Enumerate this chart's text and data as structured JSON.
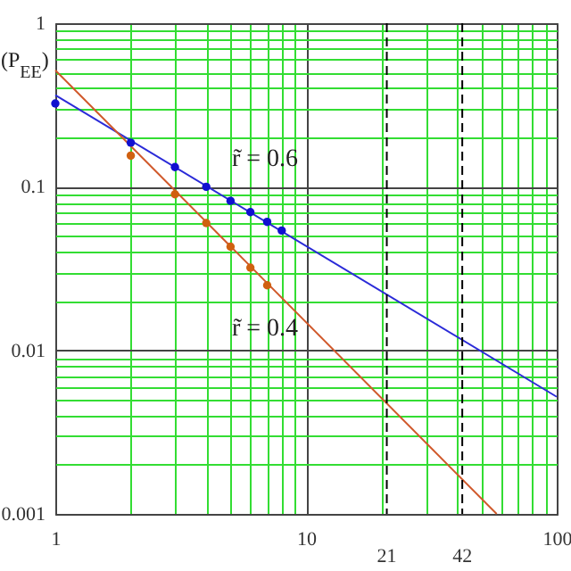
{
  "chart_data": {
    "type": "line",
    "ylabel": "(P$_{EE}$)",
    "log": "xy",
    "grid": true,
    "xlim": [
      1,
      100
    ],
    "ylim": [
      0.001,
      1
    ],
    "xticks": [
      1,
      {
        "value": 2,
        "label": null
      },
      {
        "value": 3,
        "label": null
      },
      {
        "value": 4,
        "label": null
      },
      {
        "value": 5,
        "label": null
      },
      {
        "value": 6,
        "label": null
      },
      {
        "value": 7,
        "label": null
      },
      {
        "value": 8,
        "label": null
      },
      {
        "value": 9,
        "label": null
      },
      10,
      {
        "value": 20,
        "label": null
      },
      {
        "value": 30,
        "label": null
      },
      {
        "value": 40,
        "label": null
      },
      {
        "value": 50,
        "label": null
      },
      {
        "value": 60,
        "label": null
      },
      {
        "value": 70,
        "label": null
      },
      {
        "value": 80,
        "label": null
      },
      {
        "value": 90,
        "label": null
      },
      100
    ],
    "yticks": [
      0.001,
      {
        "value": 0.002,
        "label": null
      },
      {
        "value": 0.003,
        "label": null
      },
      {
        "value": 0.004,
        "label": null
      },
      {
        "value": 0.005,
        "label": null
      },
      {
        "value": 0.006,
        "label": null
      },
      {
        "value": 0.007,
        "label": null
      },
      {
        "value": 0.008,
        "label": null
      },
      {
        "value": 0.009,
        "label": null
      },
      0.01,
      {
        "value": 0.02,
        "label": null
      },
      {
        "value": 0.03,
        "label": null
      },
      {
        "value": 0.04,
        "label": null
      },
      {
        "value": 0.05,
        "label": null
      },
      {
        "value": 0.06,
        "label": null
      },
      {
        "value": 0.07,
        "label": null
      },
      {
        "value": 0.08,
        "label": null
      },
      {
        "value": 0.09,
        "label": null
      },
      0.1,
      {
        "value": 0.2,
        "label": null
      },
      {
        "value": 0.3,
        "label": null
      },
      {
        "value": 0.4,
        "label": null
      },
      {
        "value": 0.5,
        "label": null
      },
      {
        "value": 0.6,
        "label": null
      },
      {
        "value": 0.7,
        "label": null
      },
      {
        "value": 0.8,
        "label": null
      },
      {
        "value": 0.9,
        "label": null
      },
      1
    ],
    "series": [
      {
        "color": "#2a2ad8",
        "x": [
          1,
          100
        ],
        "values": [
          0.363,
          0.0052
        ]
      },
      {
        "color": "#d0582a",
        "x": [
          1,
          57.6
        ],
        "values": [
          0.516,
          0.001
        ]
      },
      {
        "type": "scatter",
        "marker": "circle",
        "color": "#1010d0",
        "x": [
          1,
          2,
          3,
          4,
          5,
          6,
          7,
          8
        ],
        "values": [
          0.323,
          0.186,
          0.132,
          0.1,
          0.082,
          0.07,
          0.061,
          0.054
        ]
      },
      {
        "type": "scatter",
        "marker": "circle",
        "color": "#d06010",
        "x": [
          2,
          3,
          4,
          5,
          6,
          7
        ],
        "values": [
          0.155,
          0.09,
          0.06,
          0.043,
          0.032,
          0.025
        ]
      }
    ],
    "ref_lines": [
      {
        "axis": "x",
        "value": 21,
        "label": "21",
        "line_style": "dashed",
        "color": "#000000"
      },
      {
        "axis": "x",
        "value": 42,
        "label": "42",
        "line_style": "dashed",
        "color": "#000000"
      }
    ],
    "annotations": [
      "r̃ = 0.6",
      "r̃ = 0.4"
    ]
  }
}
